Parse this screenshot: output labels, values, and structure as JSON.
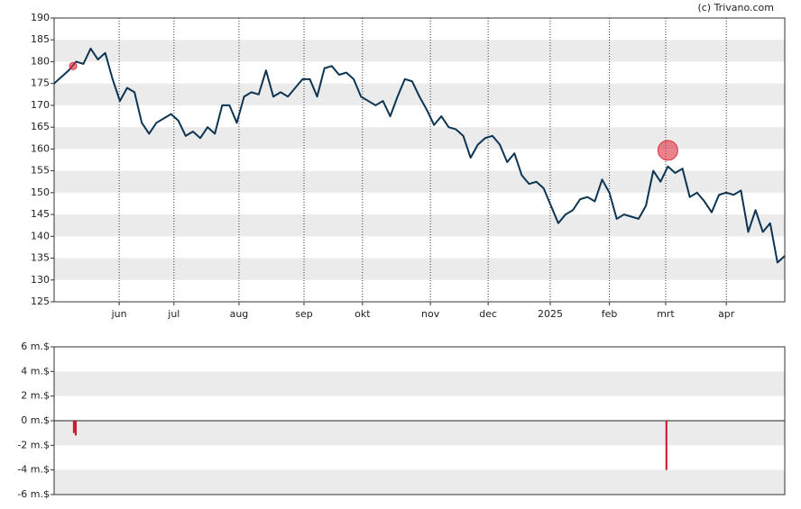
{
  "credit": "(c) Trivano.com",
  "chart_data": [
    {
      "type": "line",
      "x": [
        0,
        1,
        2,
        3,
        4,
        5,
        6,
        7,
        8,
        9,
        10,
        11,
        12,
        13,
        14,
        15,
        16,
        17,
        18,
        19,
        20,
        21,
        22,
        23,
        24,
        25,
        26,
        27,
        28,
        29,
        30,
        31,
        32,
        33,
        34,
        35,
        36,
        37,
        38,
        39,
        40,
        41,
        42,
        43,
        44,
        45,
        46,
        47,
        48,
        49,
        50,
        51,
        52,
        53,
        54,
        55,
        56,
        57,
        58,
        59,
        60,
        61,
        62,
        63,
        64,
        65,
        66,
        67,
        68,
        69,
        70,
        71,
        72,
        73,
        74,
        75,
        76,
        77,
        78,
        79,
        80,
        81,
        82,
        83,
        84,
        85,
        86,
        87,
        88,
        89,
        90,
        91,
        92,
        93,
        94,
        95,
        96,
        97,
        98,
        99,
        100
      ],
      "series": [
        {
          "color": "#0d3553",
          "values": [
            175,
            176.5,
            178,
            180,
            179.5,
            183,
            180.5,
            182,
            176,
            171,
            174,
            173,
            166,
            163.5,
            166,
            167,
            168,
            166.5,
            163,
            164,
            162.5,
            165,
            163.5,
            170,
            170,
            166,
            172,
            173,
            172.5,
            178,
            172,
            173,
            172,
            174,
            176,
            176,
            172,
            178.5,
            179,
            177,
            177.5,
            176,
            172,
            171,
            170,
            171,
            167.5,
            172,
            176,
            175.5,
            172,
            169,
            165.5,
            167.5,
            165,
            164.5,
            163,
            158,
            161,
            162.5,
            163,
            161,
            157,
            159,
            154,
            152,
            152.5,
            151,
            147,
            143,
            145,
            146,
            148.5,
            149,
            148,
            153,
            150,
            144,
            145,
            144.5,
            144,
            147,
            155,
            152.5,
            156,
            154.5,
            155.5,
            149,
            150,
            148,
            145.5,
            149.5,
            150,
            149.5,
            150.5,
            141,
            146,
            141,
            143,
            134,
            135.5
          ]
        }
      ],
      "events": [
        {
          "x": 2.6,
          "y": 179,
          "color": "#e03040"
        },
        {
          "x": 84,
          "y": 159.7,
          "color": "#e03040"
        }
      ],
      "xlim": [
        0,
        100
      ],
      "xticks": [
        {
          "value": 8.9,
          "label": "jun"
        },
        {
          "value": 16.4,
          "label": "jul"
        },
        {
          "value": 25.3,
          "label": "aug"
        },
        {
          "value": 34.2,
          "label": "sep"
        },
        {
          "value": 42.2,
          "label": "okt"
        },
        {
          "value": 51.5,
          "label": "nov"
        },
        {
          "value": 59.4,
          "label": "dec"
        },
        {
          "value": 67.9,
          "label": "2025"
        },
        {
          "value": 76,
          "label": "feb"
        },
        {
          "value": 83.7,
          "label": "mrt"
        },
        {
          "value": 92,
          "label": "apr"
        }
      ],
      "ylim": [
        125,
        190
      ],
      "yticks": [
        125,
        130,
        135,
        140,
        145,
        150,
        155,
        160,
        165,
        170,
        175,
        180,
        185,
        190
      ],
      "grid": true
    },
    {
      "type": "bar",
      "x": [
        2.7,
        2.96,
        83.8
      ],
      "values": [
        -1.0,
        -1.2,
        -4.0
      ],
      "color": "#d0102a",
      "xlim": [
        0,
        100
      ],
      "ylim": [
        -6,
        6
      ],
      "yticks": [
        {
          "value": 6,
          "label": "6 m.$"
        },
        {
          "value": 4,
          "label": "4 m.$"
        },
        {
          "value": 2,
          "label": "2 m.$"
        },
        {
          "value": 0,
          "label": "0 m.$"
        },
        {
          "value": -2,
          "label": "-2 m.$"
        },
        {
          "value": -4,
          "label": "-4 m.$"
        },
        {
          "value": -6,
          "label": "-6 m.$"
        }
      ],
      "grid": true
    }
  ]
}
